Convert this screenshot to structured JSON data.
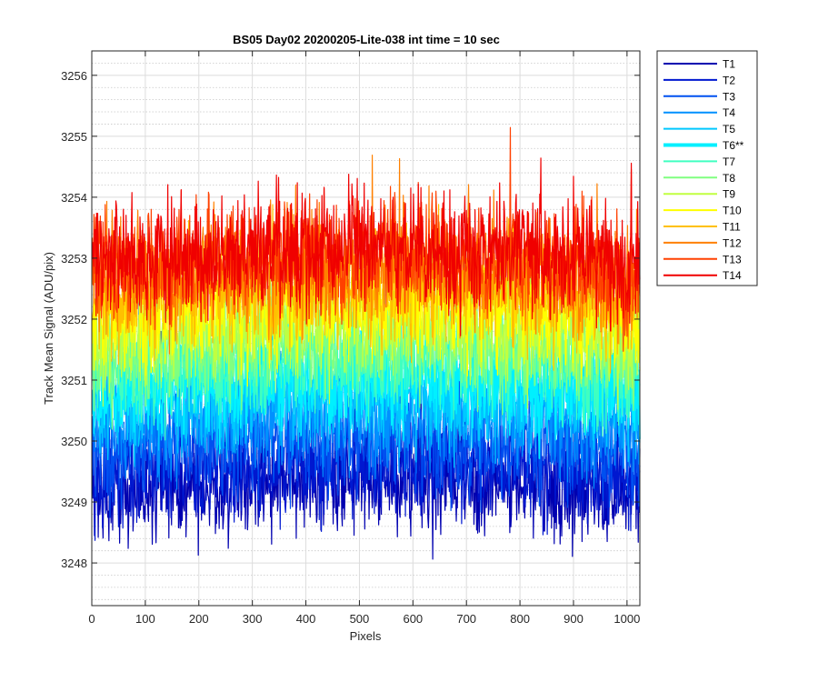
{
  "chart_data": {
    "type": "line",
    "title": "BS05 Day02 20200205-Lite-038 int time = 10 sec",
    "xlabel": "Pixels",
    "ylabel": "Track Mean Signal (ADU/pix)",
    "xlim": [
      0,
      1024
    ],
    "ylim": [
      3247.3,
      3256.4
    ],
    "xticks": [
      0,
      100,
      200,
      300,
      400,
      500,
      600,
      700,
      800,
      900,
      1000
    ],
    "yticks": [
      3248,
      3249,
      3250,
      3251,
      3252,
      3253,
      3254,
      3255,
      3256
    ],
    "grid": true,
    "minor_grid_y": true,
    "legend_position": "outside-right",
    "x_range": [
      1,
      1024
    ],
    "series": [
      {
        "name": "T1",
        "color": "#0000b0",
        "mean": 3249.1,
        "spread": 0.75,
        "highlight": false
      },
      {
        "name": "T2",
        "color": "#0018d0",
        "mean": 3249.4,
        "spread": 0.75,
        "highlight": false
      },
      {
        "name": "T3",
        "color": "#0050f0",
        "mean": 3249.8,
        "spread": 0.75,
        "highlight": false
      },
      {
        "name": "T4",
        "color": "#0090ff",
        "mean": 3250.2,
        "spread": 0.75,
        "highlight": false
      },
      {
        "name": "T5",
        "color": "#00c8ff",
        "mean": 3250.5,
        "spread": 0.75,
        "highlight": false
      },
      {
        "name": "T6**",
        "color": "#00f0ff",
        "mean": 3250.8,
        "spread": 0.75,
        "highlight": true
      },
      {
        "name": "T7",
        "color": "#40ffc0",
        "mean": 3251.1,
        "spread": 0.75,
        "highlight": false
      },
      {
        "name": "T8",
        "color": "#80ff80",
        "mean": 3251.4,
        "spread": 0.8,
        "highlight": false
      },
      {
        "name": "T9",
        "color": "#c0ff40",
        "mean": 3251.7,
        "spread": 0.8,
        "highlight": false
      },
      {
        "name": "T10",
        "color": "#ffff00",
        "mean": 3252.0,
        "spread": 0.8,
        "highlight": false
      },
      {
        "name": "T11",
        "color": "#ffc000",
        "mean": 3252.3,
        "spread": 0.85,
        "highlight": false
      },
      {
        "name": "T12",
        "color": "#ff8000",
        "mean": 3252.6,
        "spread": 0.85,
        "highlight": false
      },
      {
        "name": "T13",
        "color": "#ff4000",
        "mean": 3252.8,
        "spread": 0.85,
        "highlight": false
      },
      {
        "name": "T14",
        "color": "#f00000",
        "mean": 3252.9,
        "spread": 0.85,
        "highlight": false
      }
    ]
  }
}
